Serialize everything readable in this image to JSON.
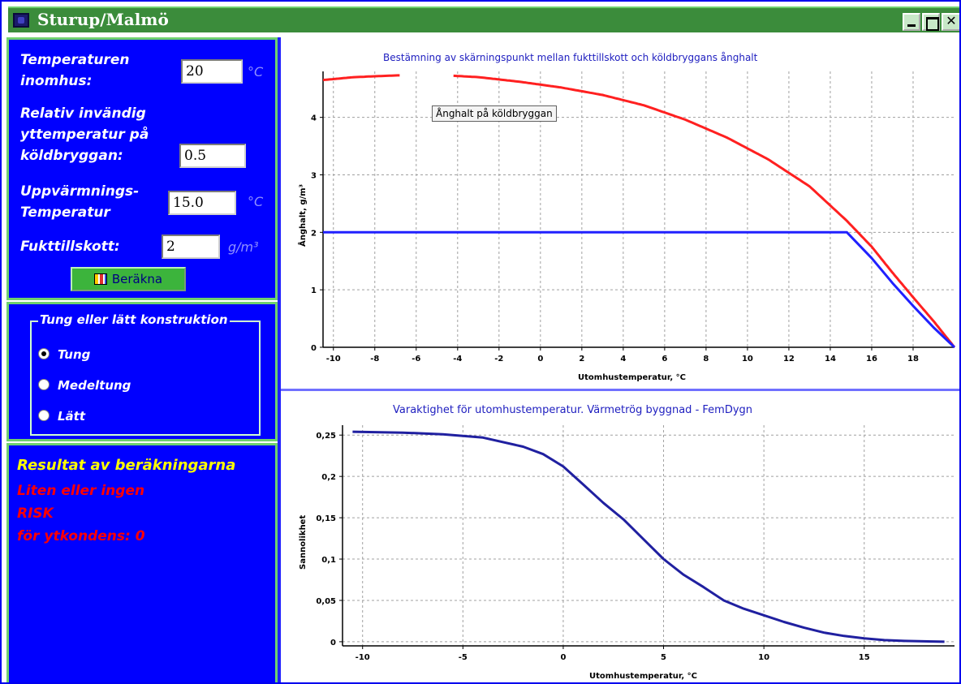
{
  "window": {
    "title": "Sturup/Malmö"
  },
  "inputs": {
    "indoor_temp": {
      "label_1": "Temperaturen",
      "label_2": "inomhus:",
      "value": "20",
      "unit": "°C"
    },
    "relative_temp": {
      "label_1": "Relativ invändig",
      "label_2": "yttemperatur på",
      "label_3": "köldbryggan:",
      "value": "0.5"
    },
    "heating_temp": {
      "label_1": "Uppvärmnings-",
      "label_2": "Temperatur",
      "value": "15.0",
      "unit": "°C"
    },
    "moisture": {
      "label": "Fukttillskott:",
      "value": "2",
      "unit": "g/m³"
    },
    "calc_button": "Beräkna"
  },
  "construction": {
    "title": "Tung eller lätt konstruktion",
    "options": [
      {
        "label": "Tung",
        "selected": true
      },
      {
        "label": "Medeltung",
        "selected": false
      },
      {
        "label": "Lätt",
        "selected": false
      }
    ]
  },
  "results": {
    "title": "Resultat av beräkningarna",
    "line_1": "Liten eller ingen",
    "line_2": "RISK",
    "line_3": "för ytkondens: 0"
  },
  "colors": {
    "panel_bg": "#0000ff",
    "panel_border": "#6fd06f",
    "title_bar": "#3b8c3b",
    "red_curve": "#ff2020",
    "blue_curve": "#2020ff",
    "duration_curve": "#2020a0"
  },
  "chart_data": [
    {
      "type": "line",
      "title": "Bestämning av skärningspunkt mellan fukttillskott och köldbryggans ånghalt",
      "xlabel": "Utomhustemperatur, °C",
      "ylabel": "Ånghalt, g/m³",
      "xlim": [
        -10.5,
        20
      ],
      "ylim": [
        0,
        4.8
      ],
      "xticks": [
        -10,
        -8,
        -6,
        -4,
        -2,
        0,
        2,
        4,
        6,
        8,
        10,
        12,
        14,
        16,
        18
      ],
      "yticks": [
        0,
        1,
        2,
        3,
        4
      ],
      "grid": true,
      "tooltip": "Ånghalt på köldbryggan",
      "series": [
        {
          "name": "Ånghalt på köldbryggan",
          "color": "#ff2020",
          "points": [
            [
              -10.5,
              4.65
            ],
            [
              -9,
              4.7
            ],
            [
              -7,
              4.73
            ],
            [
              -5,
              4.74
            ],
            [
              -3,
              4.7
            ],
            [
              -1,
              4.62
            ],
            [
              1,
              4.52
            ],
            [
              3,
              4.39
            ],
            [
              5,
              4.21
            ],
            [
              7,
              3.96
            ],
            [
              9,
              3.65
            ],
            [
              11,
              3.27
            ],
            [
              13,
              2.8
            ],
            [
              14.8,
              2.2
            ],
            [
              16,
              1.75
            ],
            [
              17,
              1.3
            ],
            [
              18,
              0.87
            ],
            [
              19,
              0.45
            ],
            [
              20,
              0.0
            ]
          ],
          "gaps": [
            [
              -6.8,
              -4.2
            ]
          ]
        },
        {
          "name": "Fukttillskott",
          "color": "#2020ff",
          "points": [
            [
              -10.5,
              2.0
            ],
            [
              14.8,
              2.0
            ],
            [
              16,
              1.55
            ],
            [
              17,
              1.12
            ],
            [
              18,
              0.72
            ],
            [
              19,
              0.34
            ],
            [
              20,
              0.0
            ]
          ]
        }
      ]
    },
    {
      "type": "line",
      "title": "Varaktighet för utomhustemperatur. Värmetrög byggnad - FemDygn",
      "xlabel": "Utomhustemperatur, °C",
      "ylabel": "Sannolikhet",
      "xlim": [
        -11,
        19.5
      ],
      "ylim": [
        -0.005,
        0.262
      ],
      "xticks": [
        -10,
        -5,
        0,
        5,
        10,
        15
      ],
      "yticks": [
        0,
        0.05,
        0.1,
        0.15,
        0.2,
        0.25
      ],
      "ytick_labels": [
        "0",
        "0,05",
        "0,1",
        "0,15",
        "0,2",
        "0,25"
      ],
      "grid": true,
      "series": [
        {
          "name": "Varaktighet",
          "color": "#2020a0",
          "points": [
            [
              -10.5,
              0.254
            ],
            [
              -8,
              0.253
            ],
            [
              -6,
              0.251
            ],
            [
              -4,
              0.247
            ],
            [
              -2,
              0.236
            ],
            [
              -1,
              0.227
            ],
            [
              0,
              0.212
            ],
            [
              1,
              0.19
            ],
            [
              2,
              0.168
            ],
            [
              3,
              0.148
            ],
            [
              4,
              0.124
            ],
            [
              5,
              0.1
            ],
            [
              6,
              0.081
            ],
            [
              7,
              0.066
            ],
            [
              8,
              0.05
            ],
            [
              9,
              0.04
            ],
            [
              10,
              0.032
            ],
            [
              11,
              0.024
            ],
            [
              12,
              0.017
            ],
            [
              13,
              0.011
            ],
            [
              14,
              0.007
            ],
            [
              15,
              0.004
            ],
            [
              16,
              0.002
            ],
            [
              17,
              0.001
            ],
            [
              19,
              0.0
            ]
          ]
        }
      ]
    }
  ]
}
